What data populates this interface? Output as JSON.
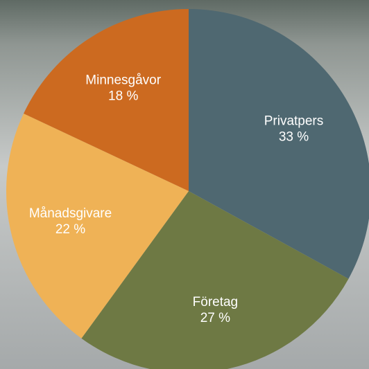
{
  "chart_data": {
    "type": "pie",
    "categories": [
      "Privatpers",
      "Företag",
      "Månadsgivare",
      "Minnesgåvor"
    ],
    "values": [
      33,
      27,
      22,
      18
    ],
    "value_labels": [
      "33 %",
      "27 %",
      "22 %",
      "18 %"
    ],
    "colors": [
      "#4f6871",
      "#6e7944",
      "#efb256",
      "#cc6a20"
    ]
  }
}
